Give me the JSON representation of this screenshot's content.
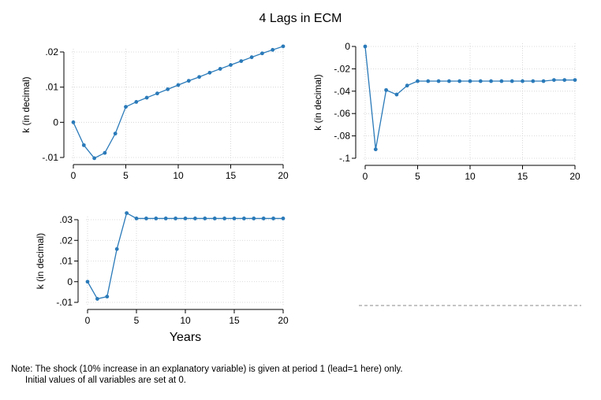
{
  "title": "4 Lags in ECM",
  "chart_data": [
    {
      "type": "line",
      "ylabel": "k (in decimal)",
      "xlabel": "",
      "x": [
        0,
        1,
        2,
        3,
        4,
        5,
        6,
        7,
        8,
        9,
        10,
        11,
        12,
        13,
        14,
        15,
        16,
        17,
        18,
        19,
        20
      ],
      "y": [
        0,
        -0.0065,
        -0.0102,
        -0.0087,
        -0.0032,
        0.0044,
        0.0058,
        0.007,
        0.0082,
        0.0094,
        0.0106,
        0.0118,
        0.0129,
        0.0141,
        0.0152,
        0.0163,
        0.0174,
        0.0185,
        0.0196,
        0.0206,
        0.0216
      ],
      "xlim": [
        0,
        20
      ],
      "ylim": [
        -0.01,
        0.02
      ],
      "xticks": [
        0,
        5,
        10,
        15,
        20
      ],
      "xtick_labels": [
        "0",
        "5",
        "10",
        "15",
        "20"
      ],
      "yticks": [
        -0.01,
        0,
        0.01,
        0.02
      ],
      "ytick_labels": [
        "-.01",
        "0",
        ".01",
        ".02"
      ],
      "grid": true,
      "color": "#2a7ab9"
    },
    {
      "type": "line",
      "ylabel": "k (in decimal)",
      "xlabel": "",
      "x": [
        0,
        1,
        2,
        3,
        4,
        5,
        6,
        7,
        8,
        9,
        10,
        11,
        12,
        13,
        14,
        15,
        16,
        17,
        18,
        19,
        20
      ],
      "y": [
        0,
        -0.092,
        -0.039,
        -0.043,
        -0.035,
        -0.031,
        -0.031,
        -0.031,
        -0.031,
        -0.031,
        -0.031,
        -0.031,
        -0.031,
        -0.031,
        -0.031,
        -0.031,
        -0.031,
        -0.031,
        -0.03,
        -0.03,
        -0.03
      ],
      "xlim": [
        0,
        20
      ],
      "ylim": [
        -0.1,
        0
      ],
      "xticks": [
        0,
        5,
        10,
        15,
        20
      ],
      "xtick_labels": [
        "0",
        "5",
        "10",
        "15",
        "20"
      ],
      "yticks": [
        -0.1,
        -0.08,
        -0.06,
        -0.04,
        -0.02,
        0
      ],
      "ytick_labels": [
        "-.1",
        "-.08",
        "-.06",
        "-.04",
        "-.02",
        "0"
      ],
      "grid": true,
      "color": "#2a7ab9"
    },
    {
      "type": "line",
      "ylabel": "k (in decimal)",
      "xlabel": "Years",
      "x": [
        0,
        1,
        2,
        3,
        4,
        5,
        6,
        7,
        8,
        9,
        10,
        11,
        12,
        13,
        14,
        15,
        16,
        17,
        18,
        19,
        20
      ],
      "y": [
        0,
        -0.0083,
        -0.0072,
        0.0158,
        0.0332,
        0.0306,
        0.0306,
        0.0306,
        0.0306,
        0.0306,
        0.0306,
        0.0306,
        0.0306,
        0.0306,
        0.0306,
        0.0306,
        0.0306,
        0.0306,
        0.0306,
        0.0306,
        0.0306
      ],
      "xlim": [
        0,
        20
      ],
      "ylim": [
        -0.01,
        0.03
      ],
      "xticks": [
        0,
        5,
        10,
        15,
        20
      ],
      "xtick_labels": [
        "0",
        "5",
        "10",
        "15",
        "20"
      ],
      "yticks": [
        -0.01,
        0,
        0.01,
        0.02,
        0.03
      ],
      "ytick_labels": [
        "-.01",
        "0",
        ".01",
        ".02",
        ".03"
      ],
      "grid": true,
      "color": "#2a7ab9"
    }
  ],
  "note": {
    "line1": "Note: The shock (10% increase in an explanatory variable) is given at period 1 (lead=1 here) only.",
    "line2": "Initial values of all variables are set at 0."
  }
}
